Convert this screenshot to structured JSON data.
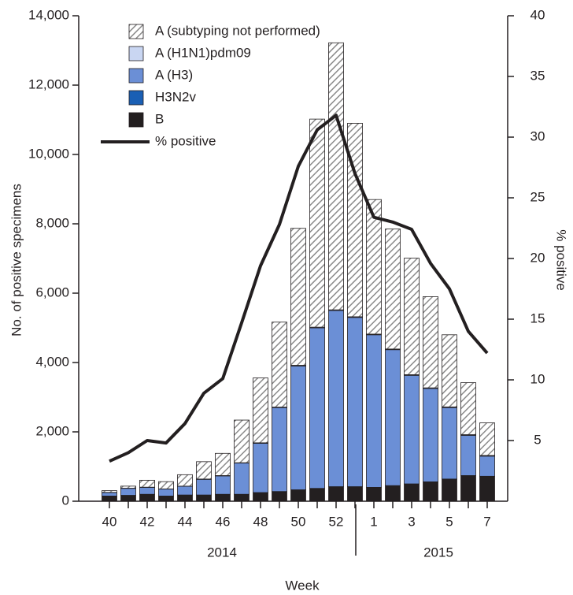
{
  "chart_data": {
    "type": "bar",
    "stacked": true,
    "categories": [
      "40",
      null,
      "42",
      null,
      "44",
      null,
      "46",
      null,
      "48",
      null,
      "50",
      null,
      "52",
      null,
      "1",
      null,
      "3",
      null,
      "5",
      null,
      "7"
    ],
    "series": [
      {
        "name": "A (subtyping not performed)",
        "color": "#8a8a8a",
        "pattern": "hatch",
        "values": [
          50,
          60,
          200,
          210,
          330,
          500,
          640,
          1230,
          1870,
          2450,
          3950,
          6000,
          7700,
          5580,
          3880,
          3460,
          3360,
          2630,
          2080,
          1500,
          940
        ]
      },
      {
        "name": "A (H1N1)pdm09",
        "color": "#c9d6f2",
        "values": [
          5,
          5,
          5,
          5,
          5,
          10,
          10,
          10,
          15,
          15,
          20,
          20,
          20,
          20,
          20,
          20,
          20,
          20,
          20,
          20,
          20
        ]
      },
      {
        "name": "A (H3)",
        "color": "#6b8fd6",
        "values": [
          100,
          200,
          200,
          200,
          250,
          450,
          530,
          900,
          1420,
          2420,
          3570,
          4630,
          5080,
          4880,
          4400,
          3920,
          3130,
          2690,
          2060,
          1160,
          580
        ]
      },
      {
        "name": "H3N2v",
        "color": "#1a5fb4",
        "values": [
          0,
          0,
          0,
          0,
          0,
          0,
          0,
          0,
          0,
          0,
          0,
          0,
          0,
          0,
          0,
          0,
          0,
          0,
          0,
          0,
          0
        ]
      },
      {
        "name": "B",
        "color": "#231f20",
        "values": [
          150,
          170,
          200,
          150,
          180,
          180,
          200,
          200,
          250,
          280,
          330,
          370,
          420,
          420,
          400,
          450,
          500,
          560,
          640,
          740,
          720
        ]
      },
      {
        "name": "% positive",
        "color": "#231f20",
        "type": "line",
        "axis": "y2",
        "values": [
          3.3,
          4.0,
          5.0,
          4.8,
          6.4,
          8.9,
          10.1,
          14.7,
          19.4,
          22.8,
          27.6,
          30.6,
          31.8,
          27.0,
          23.4,
          23.0,
          22.4,
          19.6,
          17.5,
          14.0,
          12.2
        ]
      }
    ],
    "years": [
      "2014",
      "2015"
    ],
    "xlabel": "Week",
    "ylabel": "No. of positive specimens",
    "y2label": "% positive",
    "ylim": [
      0,
      14000
    ],
    "yticks": [
      0,
      {
        "value": 2000,
        "label": "2,000"
      },
      {
        "value": 4000,
        "label": "4,000"
      },
      {
        "value": 6000,
        "label": "6,000"
      },
      {
        "value": 8000,
        "label": "8,000"
      },
      {
        "value": 10000,
        "label": "10,000"
      },
      {
        "value": 12000,
        "label": "12,000"
      },
      {
        "value": 14000,
        "label": "14,000"
      }
    ],
    "y2lim": [
      0,
      40
    ],
    "y2ticks": [
      5,
      10,
      15,
      20,
      25,
      30,
      35,
      40
    ],
    "legend": "top-left"
  }
}
